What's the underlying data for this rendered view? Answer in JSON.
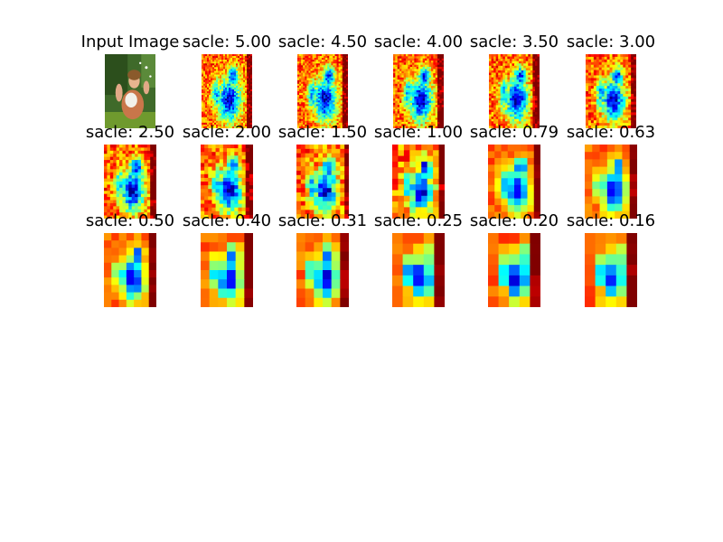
{
  "chart_data": {
    "type": "image-grid",
    "rows": 3,
    "cols": 6,
    "colormap": "jet",
    "panels": [
      {
        "title": "Input Image",
        "kind": "photo"
      },
      {
        "title": "sacle: 5.00",
        "kind": "heatmap",
        "scale": 5.0
      },
      {
        "title": "sacle: 4.50",
        "kind": "heatmap",
        "scale": 4.5
      },
      {
        "title": "sacle: 4.00",
        "kind": "heatmap",
        "scale": 4.0
      },
      {
        "title": "sacle: 3.50",
        "kind": "heatmap",
        "scale": 3.5
      },
      {
        "title": "sacle: 3.00",
        "kind": "heatmap",
        "scale": 3.0
      },
      {
        "title": "sacle: 2.50",
        "kind": "heatmap",
        "scale": 2.5
      },
      {
        "title": "sacle: 2.00",
        "kind": "heatmap",
        "scale": 2.0
      },
      {
        "title": "sacle: 1.50",
        "kind": "heatmap",
        "scale": 1.5
      },
      {
        "title": "sacle: 1.00",
        "kind": "heatmap",
        "scale": 1.0
      },
      {
        "title": "sacle: 0.79",
        "kind": "heatmap",
        "scale": 0.79
      },
      {
        "title": "sacle: 0.63",
        "kind": "heatmap",
        "scale": 0.63
      },
      {
        "title": "sacle: 0.50",
        "kind": "heatmap",
        "scale": 0.5
      },
      {
        "title": "sacle: 0.40",
        "kind": "heatmap",
        "scale": 0.4
      },
      {
        "title": "sacle: 0.31",
        "kind": "heatmap",
        "scale": 0.31
      },
      {
        "title": "sacle: 0.25",
        "kind": "heatmap",
        "scale": 0.25
      },
      {
        "title": "sacle: 0.20",
        "kind": "heatmap",
        "scale": 0.2
      },
      {
        "title": "sacle: 0.16",
        "kind": "heatmap",
        "scale": 0.16
      }
    ]
  }
}
